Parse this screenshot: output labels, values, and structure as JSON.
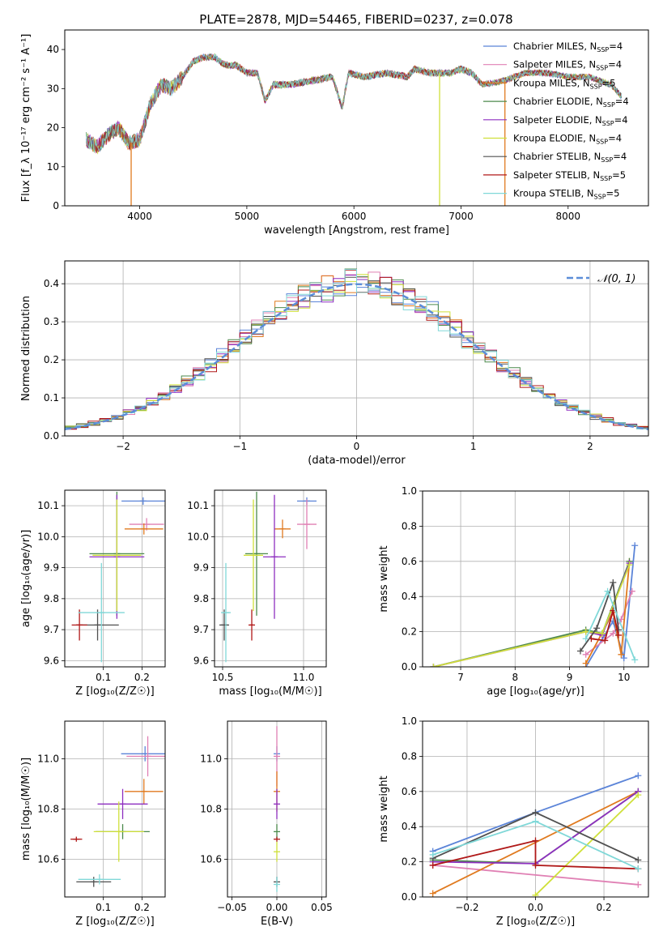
{
  "title": "PLATE=2878, MJD=54465, FIBERID=0237, z=0.078",
  "colors": {
    "chabrier_miles": "#5b84d8",
    "salpeter_miles": "#e080b4",
    "kroupa_miles": "#e07a1f",
    "chabrier_elodie": "#4c8a4c",
    "salpeter_elodie": "#8e2fc0",
    "kroupa_elodie": "#cfe03a",
    "chabrier_stelib": "#505050",
    "salpeter_stelib": "#b01818",
    "kroupa_stelib": "#80d8d8",
    "normal": "#5b8dd8"
  },
  "models": [
    {
      "key": "chabrier_miles",
      "imf": "Chabrier",
      "lib": "MILES",
      "n": "4"
    },
    {
      "key": "salpeter_miles",
      "imf": "Salpeter",
      "lib": "MILES",
      "n": "4"
    },
    {
      "key": "kroupa_miles",
      "imf": "Kroupa",
      "lib": "MILES",
      "n": "5"
    },
    {
      "key": "chabrier_elodie",
      "imf": "Chabrier",
      "lib": "ELODIE",
      "n": "4"
    },
    {
      "key": "salpeter_elodie",
      "imf": "Salpeter",
      "lib": "ELODIE",
      "n": "4"
    },
    {
      "key": "kroupa_elodie",
      "imf": "Kroupa",
      "lib": "ELODIE",
      "n": "4"
    },
    {
      "key": "chabrier_stelib",
      "imf": "Chabrier",
      "lib": "STELIB",
      "n": "4"
    },
    {
      "key": "salpeter_stelib",
      "imf": "Salpeter",
      "lib": "STELIB",
      "n": "5"
    },
    {
      "key": "kroupa_stelib",
      "imf": "Kroupa",
      "lib": "STELIB",
      "n": "5"
    }
  ],
  "chart_data": [
    {
      "id": "spectrum",
      "type": "line",
      "xlabel": "wavelength [Angstrom, rest frame]",
      "ylabel": "Flux [f_λ 10⁻¹⁷ erg cm⁻² s⁻¹ A⁻¹]",
      "xlim": [
        3300,
        8750
      ],
      "ylim": [
        0,
        45
      ],
      "xticks": [
        4000,
        5000,
        6000,
        7000,
        8000
      ],
      "yticks": [
        0,
        10,
        20,
        30,
        40
      ],
      "legend": "right",
      "spectrum": {
        "x": [
          3500,
          3600,
          3700,
          3800,
          3900,
          4000,
          4100,
          4200,
          4300,
          4400,
          4500,
          4600,
          4700,
          4800,
          4900,
          5000,
          5100,
          5170,
          5250,
          5400,
          5600,
          5800,
          5890,
          5950,
          6100,
          6300,
          6500,
          6563,
          6700,
          6900,
          7000,
          7100,
          7200,
          7400,
          7600,
          7800,
          8000,
          8200,
          8400,
          8500
        ],
        "y": [
          17,
          15,
          18,
          20,
          16,
          17,
          26,
          31,
          30,
          33,
          37,
          38,
          38,
          36,
          36,
          34,
          34,
          27,
          31,
          31,
          32,
          33,
          25,
          34,
          33,
          34,
          33,
          35,
          34,
          34,
          35,
          34,
          31,
          32,
          34,
          34,
          33,
          33,
          31,
          28
        ]
      },
      "dropouts": [
        {
          "x": 3920,
          "y": 0
        },
        {
          "x": 6800,
          "y": 0
        },
        {
          "x": 7410,
          "y": 0
        }
      ]
    },
    {
      "id": "residual-histogram",
      "type": "bar",
      "xlabel": "(data-model)/error",
      "ylabel": "Normed distribution",
      "xlim": [
        -2.5,
        2.5
      ],
      "ylim": [
        0,
        0.46
      ],
      "xticks": [
        -2,
        -1,
        0,
        1,
        2
      ],
      "yticks": [
        0.0,
        0.1,
        0.2,
        0.3,
        0.4
      ],
      "grid": true,
      "legend": "top-right",
      "normal_label": "𝒩(0, 1)",
      "bin_width": 0.1
    },
    {
      "id": "age-vs-z",
      "type": "scatter",
      "xlabel": "Z [log₁₀(Z/Z☉)]",
      "ylabel": "age  [log₁₀(age/yr)]",
      "xlim": [
        0.0,
        0.26
      ],
      "ylim": [
        9.58,
        10.15
      ],
      "xticks": [
        0.1,
        0.2
      ],
      "yticks": [
        9.6,
        9.7,
        9.8,
        9.9,
        10.0,
        10.1
      ],
      "grid": true,
      "points": [
        {
          "c": "chabrier_miles",
          "x": 0.203,
          "y": 10.115,
          "xe": 0.056,
          "ye": 0.012
        },
        {
          "c": "salpeter_miles",
          "x": 0.212,
          "y": 10.04,
          "xe": 0.045,
          "ye": 0.02
        },
        {
          "c": "kroupa_miles",
          "x": 0.205,
          "y": 10.025,
          "xe": 0.05,
          "ye": 0.018
        },
        {
          "c": "chabrier_elodie",
          "x": 0.135,
          "y": 9.945,
          "xe": 0.071,
          "ye": 0.2
        },
        {
          "c": "salpeter_elodie",
          "x": 0.135,
          "y": 9.935,
          "xe": 0.071,
          "ye": 0.2
        },
        {
          "c": "kroupa_elodie",
          "x": 0.135,
          "y": 9.94,
          "xe": 0.063,
          "ye": 0.18
        },
        {
          "c": "chabrier_stelib",
          "x": 0.085,
          "y": 9.715,
          "xe": 0.055,
          "ye": 0.05
        },
        {
          "c": "salpeter_stelib",
          "x": 0.038,
          "y": 9.715,
          "xe": 0.02,
          "ye": 0.05
        },
        {
          "c": "kroupa_stelib",
          "x": 0.095,
          "y": 9.755,
          "xe": 0.06,
          "ye": 0.16
        }
      ]
    },
    {
      "id": "age-vs-mass",
      "type": "scatter",
      "xlabel": "mass [log₁₀(M/M☉)]",
      "ylabel": "",
      "xlim": [
        10.45,
        11.14
      ],
      "ylim": [
        9.58,
        10.15
      ],
      "xticks": [
        10.5,
        11.0
      ],
      "yticks": [
        9.6,
        9.7,
        9.8,
        9.9,
        10.0,
        10.1
      ],
      "grid": true,
      "points": [
        {
          "c": "chabrier_miles",
          "x": 11.02,
          "y": 10.115,
          "xe": 0.06,
          "ye": 0.012
        },
        {
          "c": "salpeter_miles",
          "x": 11.02,
          "y": 10.04,
          "xe": 0.06,
          "ye": 0.08
        },
        {
          "c": "kroupa_miles",
          "x": 10.87,
          "y": 10.025,
          "xe": 0.05,
          "ye": 0.03
        },
        {
          "c": "chabrier_elodie",
          "x": 10.71,
          "y": 9.945,
          "xe": 0.07,
          "ye": 0.2
        },
        {
          "c": "salpeter_elodie",
          "x": 10.82,
          "y": 9.935,
          "xe": 0.07,
          "ye": 0.2
        },
        {
          "c": "kroupa_elodie",
          "x": 10.69,
          "y": 9.94,
          "xe": 0.06,
          "ye": 0.18
        },
        {
          "c": "chabrier_stelib",
          "x": 10.51,
          "y": 9.715,
          "xe": 0.03,
          "ye": 0.05
        },
        {
          "c": "salpeter_stelib",
          "x": 10.68,
          "y": 9.715,
          "xe": 0.01,
          "ye": 0.05
        },
        {
          "c": "kroupa_stelib",
          "x": 10.52,
          "y": 9.755,
          "xe": 0.03,
          "ye": 0.16
        }
      ]
    },
    {
      "id": "weight-vs-age",
      "type": "line",
      "xlabel": "age  [log₁₀(age/yr)]",
      "ylabel": "mass weight",
      "xlim": [
        6.3,
        10.45
      ],
      "ylim": [
        0,
        1.0
      ],
      "xticks": [
        7,
        8,
        9,
        10
      ],
      "yticks": [
        0.0,
        0.2,
        0.4,
        0.6,
        0.8,
        1.0
      ],
      "grid": true,
      "series": [
        {
          "c": "chabrier_miles",
          "pts": [
            [
              9.3,
              0.0
            ],
            [
              9.8,
              0.26
            ],
            [
              10.0,
              0.05
            ],
            [
              10.2,
              0.69
            ]
          ]
        },
        {
          "c": "salpeter_miles",
          "pts": [
            [
              9.3,
              0.07
            ],
            [
              9.8,
              0.19
            ],
            [
              9.95,
              0.27
            ],
            [
              10.15,
              0.43
            ]
          ]
        },
        {
          "c": "kroupa_miles",
          "pts": [
            [
              9.3,
              0.02
            ],
            [
              9.8,
              0.31
            ],
            [
              9.95,
              0.07
            ],
            [
              10.1,
              0.6
            ]
          ]
        },
        {
          "c": "chabrier_elodie",
          "pts": [
            [
              6.5,
              0.0
            ],
            [
              9.3,
              0.21
            ],
            [
              9.6,
              0.19
            ],
            [
              10.1,
              0.6
            ]
          ]
        },
        {
          "c": "salpeter_elodie",
          "pts": [
            [
              6.5,
              0.0
            ],
            [
              9.3,
              0.2
            ],
            [
              9.6,
              0.18
            ],
            [
              10.1,
              0.59
            ]
          ]
        },
        {
          "c": "kroupa_elodie",
          "pts": [
            [
              6.5,
              0.0
            ],
            [
              9.3,
              0.2
            ],
            [
              9.6,
              0.19
            ],
            [
              10.1,
              0.58
            ]
          ]
        },
        {
          "c": "chabrier_stelib",
          "pts": [
            [
              9.2,
              0.09
            ],
            [
              9.5,
              0.22
            ],
            [
              9.8,
              0.48
            ],
            [
              9.9,
              0.21
            ]
          ]
        },
        {
          "c": "salpeter_stelib",
          "pts": [
            [
              9.4,
              0.16
            ],
            [
              9.65,
              0.15
            ],
            [
              9.8,
              0.32
            ],
            [
              9.9,
              0.18
            ]
          ]
        },
        {
          "c": "kroupa_stelib",
          "pts": [
            [
              9.3,
              0.16
            ],
            [
              9.7,
              0.43
            ],
            [
              10.2,
              0.04
            ]
          ]
        }
      ]
    },
    {
      "id": "mass-vs-z",
      "type": "scatter",
      "xlabel": "Z [log₁₀(Z/Z☉)]",
      "ylabel": "mass [log₁₀(M/M☉)]",
      "xlim": [
        0.0,
        0.26
      ],
      "ylim": [
        10.45,
        11.15
      ],
      "xticks": [
        0.1,
        0.2
      ],
      "yticks": [
        10.6,
        10.8,
        11.0
      ],
      "grid": true,
      "points": [
        {
          "c": "chabrier_miles",
          "x": 0.208,
          "y": 11.02,
          "xe": 0.062,
          "ye": 0.03
        },
        {
          "c": "salpeter_miles",
          "x": 0.215,
          "y": 11.01,
          "xe": 0.055,
          "ye": 0.08
        },
        {
          "c": "kroupa_miles",
          "x": 0.205,
          "y": 10.87,
          "xe": 0.05,
          "ye": 0.05
        },
        {
          "c": "chabrier_elodie",
          "x": 0.15,
          "y": 10.71,
          "xe": 0.07,
          "ye": 0.03
        },
        {
          "c": "salpeter_elodie",
          "x": 0.15,
          "y": 10.82,
          "xe": 0.065,
          "ye": 0.06
        },
        {
          "c": "kroupa_elodie",
          "x": 0.14,
          "y": 10.71,
          "xe": 0.065,
          "ye": 0.12
        },
        {
          "c": "chabrier_stelib",
          "x": 0.075,
          "y": 10.51,
          "xe": 0.045,
          "ye": 0.02
        },
        {
          "c": "salpeter_stelib",
          "x": 0.03,
          "y": 10.68,
          "xe": 0.015,
          "ye": 0.01
        },
        {
          "c": "kroupa_stelib",
          "x": 0.09,
          "y": 10.52,
          "xe": 0.055,
          "ye": 0.02
        }
      ]
    },
    {
      "id": "mass-vs-ebv",
      "type": "scatter",
      "xlabel": "E(B-V)",
      "ylabel": "",
      "xlim": [
        -0.055,
        0.055
      ],
      "ylim": [
        10.45,
        11.15
      ],
      "xticks": [
        -0.05,
        0.0,
        0.05
      ],
      "yticks": [
        10.6,
        10.8,
        11.0
      ],
      "grid": true,
      "points": [
        {
          "c": "chabrier_miles",
          "x": 0.0,
          "y": 11.02,
          "xe": 0.0,
          "ye": 0.03
        },
        {
          "c": "salpeter_miles",
          "x": 0.0,
          "y": 11.01,
          "xe": 0.0,
          "ye": 0.12
        },
        {
          "c": "kroupa_miles",
          "x": 0.0,
          "y": 10.87,
          "xe": 0.0,
          "ye": 0.08
        },
        {
          "c": "chabrier_elodie",
          "x": 0.0,
          "y": 10.71,
          "xe": 0.0,
          "ye": 0.03
        },
        {
          "c": "salpeter_elodie",
          "x": 0.0,
          "y": 10.82,
          "xe": 0.0,
          "ye": 0.06
        },
        {
          "c": "kroupa_elodie",
          "x": 0.0,
          "y": 10.63,
          "xe": 0.0,
          "ye": 0.04
        },
        {
          "c": "chabrier_stelib",
          "x": 0.0,
          "y": 10.51,
          "xe": 0.0,
          "ye": 0.02
        },
        {
          "c": "salpeter_stelib",
          "x": 0.0,
          "y": 10.68,
          "xe": 0.0,
          "ye": 0.01
        },
        {
          "c": "kroupa_stelib",
          "x": 0.0,
          "y": 10.5,
          "xe": 0.0,
          "ye": 0.03
        }
      ]
    },
    {
      "id": "weight-vs-z",
      "type": "line",
      "xlabel": "Z [log₁₀(Z/Z☉)]",
      "ylabel": "mass weight",
      "xlim": [
        -0.33,
        0.33
      ],
      "ylim": [
        0,
        1.0
      ],
      "xticks": [
        -0.2,
        0.0,
        0.2
      ],
      "yticks": [
        0.0,
        0.2,
        0.4,
        0.6,
        0.8,
        1.0
      ],
      "grid": true,
      "series": [
        {
          "c": "chabrier_miles",
          "pts": [
            [
              -0.3,
              0.26
            ],
            [
              0.0,
              0.48
            ],
            [
              0.3,
              0.69
            ]
          ]
        },
        {
          "c": "salpeter_miles",
          "pts": [
            [
              -0.3,
              0.18
            ],
            [
              0.3,
              0.07
            ]
          ]
        },
        {
          "c": "kroupa_miles",
          "pts": [
            [
              -0.3,
              0.02
            ],
            [
              0.3,
              0.6
            ]
          ]
        },
        {
          "c": "chabrier_elodie",
          "pts": [
            [
              -0.3,
              0.21
            ],
            [
              0.0,
              0.19
            ],
            [
              0.3,
              0.6
            ]
          ]
        },
        {
          "c": "salpeter_elodie",
          "pts": [
            [
              -0.3,
              0.2
            ],
            [
              0.0,
              0.19
            ],
            [
              0.3,
              0.6
            ]
          ]
        },
        {
          "c": "kroupa_elodie",
          "pts": [
            [
              0.0,
              0.01
            ],
            [
              0.3,
              0.58
            ]
          ]
        },
        {
          "c": "chabrier_stelib",
          "pts": [
            [
              -0.3,
              0.22
            ],
            [
              0.0,
              0.48
            ],
            [
              0.3,
              0.21
            ]
          ]
        },
        {
          "c": "salpeter_stelib",
          "pts": [
            [
              -0.3,
              0.18
            ],
            [
              0.0,
              0.32
            ],
            [
              0.0,
              0.18
            ],
            [
              0.3,
              0.16
            ]
          ]
        },
        {
          "c": "kroupa_stelib",
          "pts": [
            [
              -0.3,
              0.24
            ],
            [
              0.0,
              0.43
            ],
            [
              0.3,
              0.16
            ]
          ]
        }
      ]
    }
  ]
}
